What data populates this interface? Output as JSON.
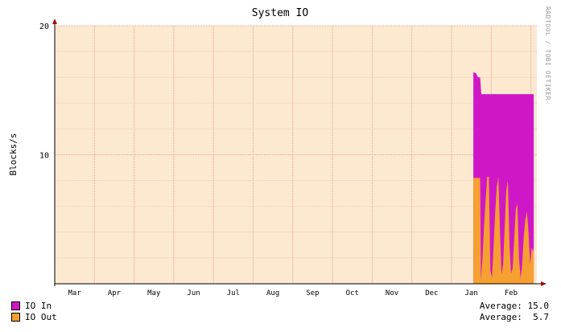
{
  "watermark": "RRDTOOL / TOBI OETIKER",
  "colors": {
    "background": "#fde8d0",
    "grid_minor": "#f0c8b8",
    "grid_major": "#e8a090",
    "io_in": "#d017c8",
    "io_out": "#f5a030"
  },
  "legend": [
    {
      "label": "IO In",
      "color": "#d017c8",
      "average_label": "Average: 15.0"
    },
    {
      "label": "IO Out",
      "color": "#f5a030",
      "average_label": "Average:  5.7"
    }
  ],
  "chart_data": {
    "type": "area",
    "title": "System IO",
    "ylabel": "Blocks/s",
    "xlabel": "",
    "ylim": [
      0,
      20
    ],
    "yticks": [
      10,
      20
    ],
    "xlim": [
      0,
      12.15
    ],
    "month_labels": [
      {
        "label": "Mar",
        "x": 0.5
      },
      {
        "label": "Apr",
        "x": 1.5
      },
      {
        "label": "May",
        "x": 2.5
      },
      {
        "label": "Jun",
        "x": 3.5
      },
      {
        "label": "Jul",
        "x": 4.5
      },
      {
        "label": "Aug",
        "x": 5.5
      },
      {
        "label": "Sep",
        "x": 6.5
      },
      {
        "label": "Oct",
        "x": 7.5
      },
      {
        "label": "Nov",
        "x": 8.5
      },
      {
        "label": "Dec",
        "x": 9.5
      },
      {
        "label": "Jan",
        "x": 10.5
      },
      {
        "label": "Feb",
        "x": 11.5
      }
    ],
    "grid": true,
    "series": [
      {
        "name": "IO In",
        "stacked_total": [
          [
            10.55,
            0
          ],
          [
            10.55,
            16.4
          ],
          [
            10.62,
            16.3
          ],
          [
            10.67,
            16.0
          ],
          [
            10.72,
            16.0
          ],
          [
            10.75,
            14.7
          ],
          [
            12.07,
            14.7
          ],
          [
            12.07,
            0
          ]
        ]
      },
      {
        "name": "IO Out",
        "values": [
          [
            10.55,
            0
          ],
          [
            10.55,
            8.2
          ],
          [
            10.72,
            8.2
          ],
          [
            10.74,
            0.3
          ],
          [
            10.78,
            2.0
          ],
          [
            10.82,
            4.5
          ],
          [
            10.86,
            6.5
          ],
          [
            10.9,
            8.3
          ],
          [
            10.94,
            8.3
          ],
          [
            10.98,
            1.0
          ],
          [
            11.02,
            0.5
          ],
          [
            11.06,
            3.0
          ],
          [
            11.1,
            5.5
          ],
          [
            11.14,
            7.5
          ],
          [
            11.18,
            8.3
          ],
          [
            11.22,
            4.0
          ],
          [
            11.26,
            0.7
          ],
          [
            11.3,
            1.5
          ],
          [
            11.34,
            4.5
          ],
          [
            11.38,
            7.2
          ],
          [
            11.42,
            8.0
          ],
          [
            11.46,
            3.0
          ],
          [
            11.5,
            0.8
          ],
          [
            11.54,
            1.2
          ],
          [
            11.58,
            3.5
          ],
          [
            11.62,
            5.8
          ],
          [
            11.66,
            6.2
          ],
          [
            11.7,
            2.0
          ],
          [
            11.74,
            0.4
          ],
          [
            11.78,
            1.5
          ],
          [
            11.82,
            3.6
          ],
          [
            11.86,
            5.0
          ],
          [
            11.9,
            5.6
          ],
          [
            11.94,
            4.0
          ],
          [
            11.98,
            1.5
          ],
          [
            12.02,
            2.8
          ],
          [
            12.07,
            2.5
          ],
          [
            12.07,
            0
          ]
        ]
      }
    ]
  }
}
